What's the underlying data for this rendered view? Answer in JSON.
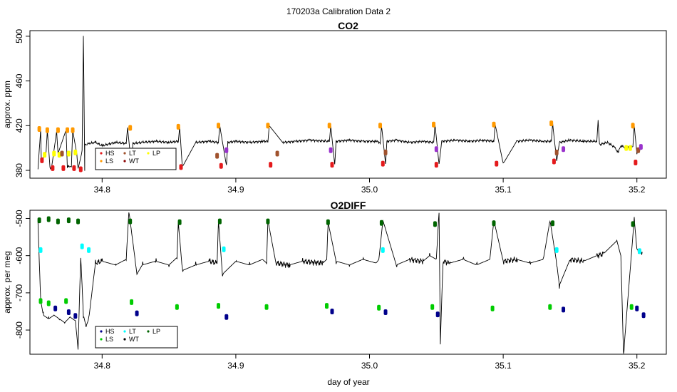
{
  "figure_title": "170203a   Calibration Data 2",
  "xlabel": "day of year",
  "chart_data": [
    {
      "type": "line",
      "title": "CO2",
      "ylabel": "approx. ppm",
      "xlim": [
        34.746,
        35.222
      ],
      "ylim": [
        373,
        505
      ],
      "xticks": [
        34.8,
        34.9,
        35.0,
        35.1,
        35.2
      ],
      "xtick_labels": [
        "34.8",
        "34.9",
        "35.0",
        "35.1",
        "35.2"
      ],
      "yticks": [
        380,
        420,
        460,
        500
      ],
      "ytick_labels": [
        "380",
        "420",
        "460",
        "500"
      ],
      "grid": false,
      "legend_position": "bottom-left",
      "legend": [
        {
          "label": "HS",
          "color": "#e41a1c"
        },
        {
          "label": "LT",
          "color": "#a0522d"
        },
        {
          "label": "LP",
          "color": "#ffff00"
        },
        {
          "label": "LS",
          "color": "#ff9900"
        },
        {
          "label": "WT",
          "color": "#8b0000"
        }
      ],
      "series": [
        {
          "color": "#000000",
          "x": [
            34.752,
            34.754,
            34.7545,
            34.758,
            34.759,
            34.761,
            34.762,
            34.766,
            34.767,
            34.773,
            34.774,
            34.777,
            34.778,
            34.781,
            34.782,
            34.785,
            34.786,
            34.787,
            34.787,
            34.788,
            34.79,
            34.795,
            34.8,
            34.81,
            34.818,
            34.819,
            34.822,
            34.823,
            34.83,
            34.84,
            34.85,
            34.857,
            34.858,
            34.86,
            34.87,
            34.88,
            34.887,
            34.888,
            34.893,
            34.894,
            34.9,
            34.91,
            34.92,
            34.924,
            34.925,
            34.935,
            34.945,
            34.955,
            34.97,
            34.971,
            34.974,
            34.975,
            34.985,
            34.995,
            35.005,
            35.008,
            35.009,
            35.012,
            35.013,
            35.02,
            35.03,
            35.04,
            35.048,
            35.049,
            35.052,
            35.054,
            35.065,
            35.075,
            35.085,
            35.093,
            35.094,
            35.1,
            35.11,
            35.12,
            35.13,
            35.136,
            35.137,
            35.14,
            35.142,
            35.15,
            35.16,
            35.17,
            35.171,
            35.172,
            35.178,
            35.183,
            35.186,
            35.188,
            35.192,
            35.197,
            35.198,
            35.2,
            35.202,
            35.204
          ],
          "y": [
            381,
            416,
            390,
            394,
            416,
            383,
            381,
            415,
            395,
            416,
            383,
            384,
            416,
            395,
            381,
            397,
            500,
            380,
            404,
            403,
            404,
            405,
            402,
            405,
            404,
            418,
            383,
            404,
            405,
            406,
            405,
            406,
            419,
            383,
            405,
            406,
            405,
            420,
            384,
            405,
            406,
            405,
            406,
            406,
            420,
            405,
            406,
            407,
            406,
            420,
            385,
            406,
            407,
            406,
            406,
            405,
            420,
            386,
            406,
            407,
            405,
            406,
            405,
            421,
            385,
            406,
            407,
            406,
            407,
            406,
            421,
            386,
            406,
            407,
            406,
            406,
            422,
            388,
            405,
            407,
            406,
            406,
            425,
            403,
            405,
            401,
            396,
            402,
            400,
            401,
            420,
            395,
            398,
            401
          ]
        }
      ],
      "markers": [
        {
          "name": "LS",
          "color": "#ff9900",
          "points": [
            [
              34.753,
              417
            ],
            [
              34.759,
              416
            ],
            [
              34.767,
              416
            ],
            [
              34.774,
              416
            ],
            [
              34.778,
              416
            ],
            [
              34.821,
              418
            ],
            [
              34.857,
              419
            ],
            [
              34.887,
              420
            ],
            [
              34.924,
              420
            ],
            [
              34.97,
              420
            ],
            [
              35.008,
              420
            ],
            [
              35.048,
              421
            ],
            [
              35.093,
              421
            ],
            [
              35.136,
              422
            ],
            [
              35.197,
              420
            ]
          ]
        },
        {
          "name": "HS",
          "color": "#e41a1c",
          "points": [
            [
              34.755,
              389
            ],
            [
              34.763,
              382
            ],
            [
              34.771,
              382
            ],
            [
              34.779,
              382
            ],
            [
              34.784,
              381
            ],
            [
              34.824,
              383
            ],
            [
              34.859,
              383
            ],
            [
              34.889,
              384
            ],
            [
              34.926,
              385
            ],
            [
              34.972,
              385
            ],
            [
              35.01,
              386
            ],
            [
              35.05,
              385
            ],
            [
              35.095,
              386
            ],
            [
              35.138,
              388
            ],
            [
              35.199,
              387
            ]
          ]
        },
        {
          "name": "LP",
          "color": "#ffff00",
          "points": [
            [
              34.757,
              394
            ],
            [
              34.764,
              395
            ],
            [
              34.768,
              394
            ],
            [
              34.775,
              395
            ],
            [
              34.78,
              396
            ],
            [
              35.192,
              400
            ],
            [
              35.195,
              400
            ]
          ]
        },
        {
          "name": "LT",
          "color": "#a0522d",
          "points": [
            [
              34.77,
              395
            ],
            [
              34.886,
              393
            ],
            [
              34.931,
              395
            ],
            [
              35.012,
              396
            ],
            [
              35.14,
              396
            ],
            [
              35.201,
              398
            ]
          ]
        },
        {
          "name": "WT",
          "color": "#9932cc",
          "points": [
            [
              34.893,
              398
            ],
            [
              34.971,
              398
            ],
            [
              35.05,
              399
            ],
            [
              35.145,
              399
            ],
            [
              35.203,
              401
            ]
          ]
        }
      ]
    },
    {
      "type": "line",
      "title": "O2DIFF",
      "ylabel": "approx. per meg",
      "xlim": [
        34.746,
        35.222
      ],
      "ylim": [
        -865,
        -478
      ],
      "xticks": [
        34.8,
        34.9,
        35.0,
        35.1,
        35.2
      ],
      "xtick_labels": [
        "34.8",
        "34.9",
        "35.0",
        "35.1",
        "35.2"
      ],
      "yticks": [
        -800,
        -700,
        -600,
        -500
      ],
      "ytick_labels": [
        "-800",
        "-700",
        "-600",
        "-500"
      ],
      "grid": false,
      "legend_position": "bottom-left",
      "legend": [
        {
          "label": "HS",
          "color": "#00008b"
        },
        {
          "label": "LT",
          "color": "#00ffff"
        },
        {
          "label": "LP",
          "color": "#006400"
        },
        {
          "label": "LS",
          "color": "#00cc00"
        },
        {
          "label": "WT",
          "color": "#000000"
        }
      ],
      "series": [
        {
          "color": "#000000",
          "x": [
            34.752,
            34.754,
            34.756,
            34.76,
            34.764,
            34.768,
            34.772,
            34.776,
            34.78,
            34.782,
            34.784,
            34.786,
            34.788,
            34.79,
            34.795,
            34.8,
            34.81,
            34.818,
            34.82,
            34.825,
            34.826,
            34.83,
            34.84,
            34.85,
            34.856,
            34.857,
            34.86,
            34.87,
            34.88,
            34.886,
            34.887,
            34.89,
            34.9,
            34.91,
            34.92,
            34.923,
            34.924,
            34.93,
            34.94,
            34.95,
            34.965,
            34.968,
            34.969,
            34.975,
            34.985,
            34.995,
            35.005,
            35.007,
            35.01,
            35.02,
            35.03,
            35.04,
            35.045,
            35.05,
            35.052,
            35.053,
            35.055,
            35.06,
            35.07,
            35.08,
            35.09,
            35.093,
            35.1,
            35.11,
            35.12,
            35.13,
            35.135,
            35.14,
            35.142,
            35.15,
            35.16,
            35.17,
            35.175,
            35.185,
            35.188,
            35.19,
            35.198,
            35.2,
            35.204
          ],
          "y": [
            -510,
            -720,
            -760,
            -770,
            -760,
            -770,
            -780,
            -765,
            -775,
            -850,
            -600,
            -760,
            -790,
            -770,
            -620,
            -615,
            -625,
            -610,
            -480,
            -620,
            -650,
            -625,
            -615,
            -625,
            -605,
            -510,
            -640,
            -625,
            -615,
            -620,
            -505,
            -650,
            -615,
            -625,
            -610,
            -620,
            -505,
            -620,
            -625,
            -615,
            -620,
            -610,
            -510,
            -615,
            -625,
            -610,
            -620,
            -610,
            -505,
            -625,
            -610,
            -615,
            -600,
            -610,
            -480,
            -830,
            -615,
            -620,
            -610,
            -625,
            -610,
            -505,
            -615,
            -610,
            -620,
            -610,
            -505,
            -620,
            -680,
            -610,
            -615,
            -600,
            -595,
            -560,
            -600,
            -865,
            -500,
            -585,
            -590
          ]
        }
      ],
      "markers": [
        {
          "name": "LP",
          "color": "#006400",
          "points": [
            [
              34.753,
              -505
            ],
            [
              34.76,
              -502
            ],
            [
              34.767,
              -508
            ],
            [
              34.775,
              -505
            ],
            [
              34.782,
              -508
            ],
            [
              34.821,
              -508
            ],
            [
              34.858,
              -510
            ],
            [
              34.888,
              -508
            ],
            [
              34.924,
              -508
            ],
            [
              34.969,
              -510
            ],
            [
              35.009,
              -512
            ],
            [
              35.049,
              -515
            ],
            [
              35.093,
              -513
            ],
            [
              35.137,
              -513
            ],
            [
              35.197,
              -515
            ]
          ]
        },
        {
          "name": "LT",
          "color": "#00ffff",
          "points": [
            [
              34.754,
              -585
            ],
            [
              34.785,
              -575
            ],
            [
              34.79,
              -585
            ],
            [
              34.891,
              -583
            ],
            [
              35.01,
              -585
            ],
            [
              35.14,
              -585
            ],
            [
              35.202,
              -588
            ]
          ]
        },
        {
          "name": "LS",
          "color": "#00cc00",
          "points": [
            [
              34.754,
              -722
            ],
            [
              34.76,
              -728
            ],
            [
              34.773,
              -722
            ],
            [
              34.822,
              -725
            ],
            [
              34.856,
              -738
            ],
            [
              34.887,
              -735
            ],
            [
              34.923,
              -738
            ],
            [
              34.968,
              -735
            ],
            [
              35.007,
              -740
            ],
            [
              35.047,
              -738
            ],
            [
              35.092,
              -742
            ],
            [
              35.135,
              -738
            ],
            [
              35.196,
              -738
            ]
          ]
        },
        {
          "name": "HS",
          "color": "#00008b",
          "points": [
            [
              34.765,
              -742
            ],
            [
              34.775,
              -752
            ],
            [
              34.78,
              -762
            ],
            [
              34.826,
              -755
            ],
            [
              34.893,
              -765
            ],
            [
              34.972,
              -750
            ],
            [
              35.012,
              -752
            ],
            [
              35.051,
              -758
            ],
            [
              35.145,
              -745
            ],
            [
              35.2,
              -742
            ],
            [
              35.205,
              -760
            ]
          ]
        }
      ]
    }
  ]
}
